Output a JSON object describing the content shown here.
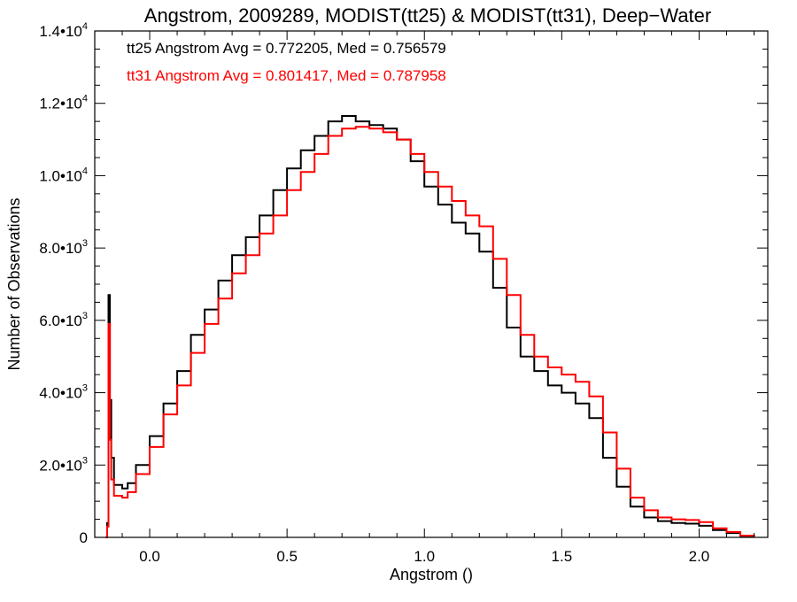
{
  "chart_data": {
    "type": "line",
    "title": "Angstrom, 2009289, MODIST(tt25) & MODIST(tt31), Deep−Water",
    "xlabel": "Angstrom ()",
    "ylabel": "Number of Observations",
    "xlim": [
      -0.2,
      2.25
    ],
    "ylim": [
      0,
      14000
    ],
    "grid": false,
    "x_ticks": [
      {
        "value": 0.0,
        "label": "0.0"
      },
      {
        "value": 0.5,
        "label": "0.5"
      },
      {
        "value": 1.0,
        "label": "1.0"
      },
      {
        "value": 1.5,
        "label": "1.5"
      },
      {
        "value": 2.0,
        "label": "2.0"
      }
    ],
    "y_ticks": [
      {
        "value": 0,
        "mant": "0",
        "exp": ""
      },
      {
        "value": 2000,
        "mant": "2.0•10",
        "exp": "3"
      },
      {
        "value": 4000,
        "mant": "4.0•10",
        "exp": "3"
      },
      {
        "value": 6000,
        "mant": "6.0•10",
        "exp": "3"
      },
      {
        "value": 8000,
        "mant": "8.0•10",
        "exp": "3"
      },
      {
        "value": 10000,
        "mant": "1.0•10",
        "exp": "4"
      },
      {
        "value": 12000,
        "mant": "1.2•10",
        "exp": "4"
      },
      {
        "value": 14000,
        "mant": "1.4•10",
        "exp": "4"
      }
    ],
    "annotations": [
      {
        "text": "tt25 Angstrom Avg = 0.772205, Med = 0.756579",
        "color": "#000000"
      },
      {
        "text": "tt31 Angstrom Avg = 0.801417, Med = 0.787958",
        "color": "#ff0000"
      }
    ],
    "series": [
      {
        "color": "#000000",
        "points": [
          [
            -0.16,
            0
          ],
          [
            -0.155,
            400
          ],
          [
            -0.15,
            6700
          ],
          [
            -0.145,
            3800
          ],
          [
            -0.14,
            2200
          ],
          [
            -0.13,
            1450
          ],
          [
            -0.1,
            1350
          ],
          [
            -0.08,
            1500
          ],
          [
            -0.05,
            2000
          ],
          [
            0.0,
            2800
          ],
          [
            0.05,
            3700
          ],
          [
            0.1,
            4600
          ],
          [
            0.15,
            5600
          ],
          [
            0.2,
            6300
          ],
          [
            0.25,
            7100
          ],
          [
            0.3,
            7800
          ],
          [
            0.35,
            8300
          ],
          [
            0.4,
            8900
          ],
          [
            0.45,
            9600
          ],
          [
            0.5,
            10200
          ],
          [
            0.55,
            10700
          ],
          [
            0.6,
            11100
          ],
          [
            0.65,
            11500
          ],
          [
            0.7,
            11650
          ],
          [
            0.75,
            11500
          ],
          [
            0.8,
            11400
          ],
          [
            0.85,
            11300
          ],
          [
            0.9,
            11000
          ],
          [
            0.95,
            10400
          ],
          [
            1.0,
            9700
          ],
          [
            1.05,
            9200
          ],
          [
            1.1,
            8700
          ],
          [
            1.15,
            8400
          ],
          [
            1.2,
            7900
          ],
          [
            1.25,
            6900
          ],
          [
            1.3,
            5800
          ],
          [
            1.35,
            5000
          ],
          [
            1.4,
            4600
          ],
          [
            1.45,
            4200
          ],
          [
            1.5,
            4000
          ],
          [
            1.55,
            3700
          ],
          [
            1.6,
            3300
          ],
          [
            1.65,
            2200
          ],
          [
            1.7,
            1400
          ],
          [
            1.75,
            850
          ],
          [
            1.8,
            550
          ],
          [
            1.85,
            450
          ],
          [
            1.9,
            400
          ],
          [
            1.95,
            380
          ],
          [
            2.0,
            320
          ],
          [
            2.05,
            200
          ],
          [
            2.1,
            120
          ],
          [
            2.15,
            40
          ],
          [
            2.2,
            0
          ]
        ]
      },
      {
        "color": "#ff0000",
        "points": [
          [
            -0.16,
            0
          ],
          [
            -0.155,
            300
          ],
          [
            -0.15,
            5900
          ],
          [
            -0.145,
            2700
          ],
          [
            -0.14,
            1600
          ],
          [
            -0.13,
            1150
          ],
          [
            -0.1,
            1100
          ],
          [
            -0.08,
            1250
          ],
          [
            -0.05,
            1750
          ],
          [
            0.0,
            2500
          ],
          [
            0.05,
            3400
          ],
          [
            0.1,
            4200
          ],
          [
            0.15,
            5100
          ],
          [
            0.2,
            5900
          ],
          [
            0.25,
            6600
          ],
          [
            0.3,
            7300
          ],
          [
            0.35,
            7800
          ],
          [
            0.4,
            8400
          ],
          [
            0.45,
            8900
          ],
          [
            0.5,
            9600
          ],
          [
            0.55,
            10100
          ],
          [
            0.6,
            10600
          ],
          [
            0.65,
            11100
          ],
          [
            0.7,
            11300
          ],
          [
            0.75,
            11350
          ],
          [
            0.8,
            11300
          ],
          [
            0.85,
            11200
          ],
          [
            0.9,
            11000
          ],
          [
            0.95,
            10600
          ],
          [
            1.0,
            10100
          ],
          [
            1.05,
            9700
          ],
          [
            1.1,
            9300
          ],
          [
            1.15,
            8900
          ],
          [
            1.2,
            8600
          ],
          [
            1.25,
            7700
          ],
          [
            1.3,
            6700
          ],
          [
            1.35,
            5600
          ],
          [
            1.4,
            5000
          ],
          [
            1.45,
            4700
          ],
          [
            1.5,
            4500
          ],
          [
            1.55,
            4300
          ],
          [
            1.6,
            3900
          ],
          [
            1.65,
            2900
          ],
          [
            1.7,
            1900
          ],
          [
            1.75,
            1100
          ],
          [
            1.8,
            750
          ],
          [
            1.85,
            550
          ],
          [
            1.9,
            500
          ],
          [
            1.95,
            480
          ],
          [
            2.0,
            420
          ],
          [
            2.05,
            250
          ],
          [
            2.1,
            150
          ],
          [
            2.15,
            50
          ],
          [
            2.2,
            0
          ]
        ]
      }
    ]
  }
}
